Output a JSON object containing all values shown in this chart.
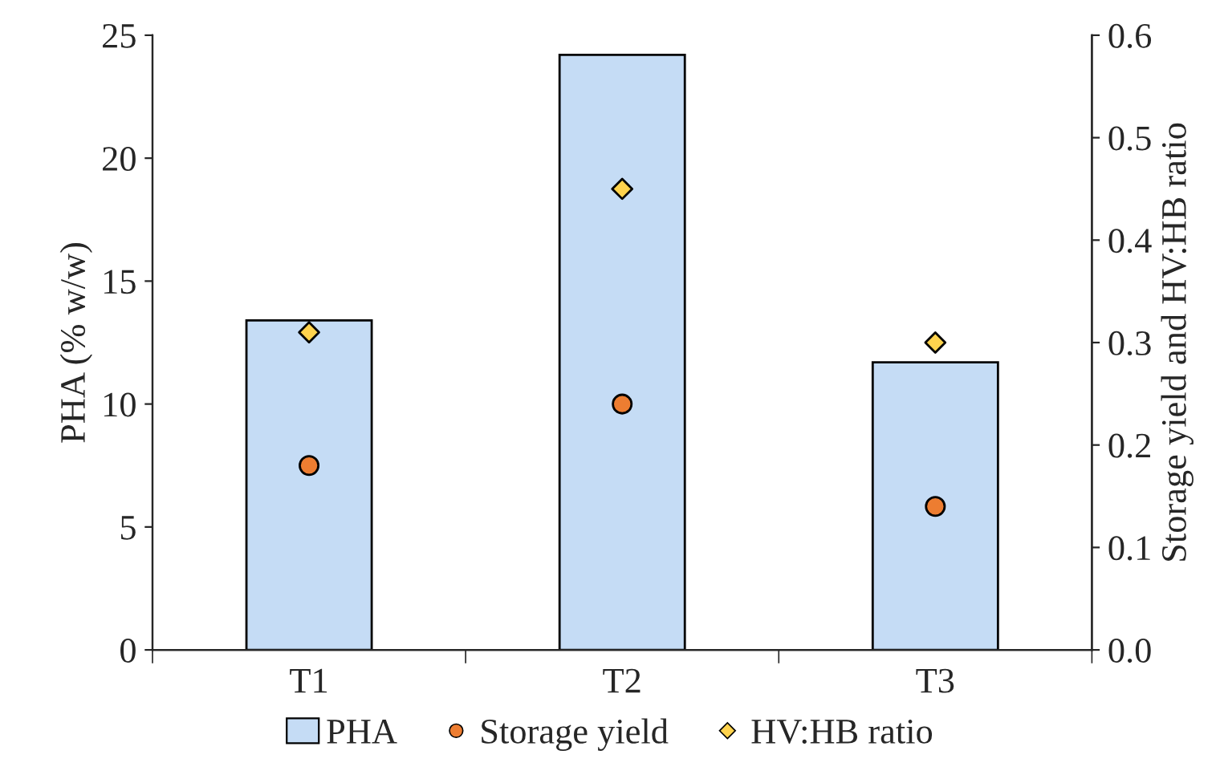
{
  "chart_data": {
    "type": "bar",
    "categories": [
      "T1",
      "T2",
      "T3"
    ],
    "ylabel": "PHA (% w/w)",
    "y2label": "Storage yield and HV:HB ratio",
    "series": [
      {
        "name": "PHA",
        "color": "#c5dcf5",
        "values": [
          13.4,
          24.2,
          11.7
        ]
      },
      {
        "name": "Storage yield",
        "type": "scatter",
        "axis": "y2",
        "marker": "circle",
        "color": "#ed7d31",
        "values": [
          0.18,
          0.24,
          0.14
        ]
      },
      {
        "name": "HV:HB ratio",
        "type": "scatter",
        "axis": "y2",
        "marker": "diamond",
        "color": "#ffd34d",
        "values": [
          0.31,
          0.45,
          0.3
        ]
      }
    ],
    "ylim": [
      0,
      25
    ],
    "yticks": [
      0,
      5,
      10,
      15,
      20,
      25
    ],
    "y2lim": [
      0,
      0.6
    ],
    "y2ticks": [
      {
        "value": 0,
        "label": "0.0"
      },
      0.1,
      0.2,
      0.3,
      0.4,
      0.5,
      0.6
    ],
    "grid": false,
    "legend": "bottom"
  }
}
